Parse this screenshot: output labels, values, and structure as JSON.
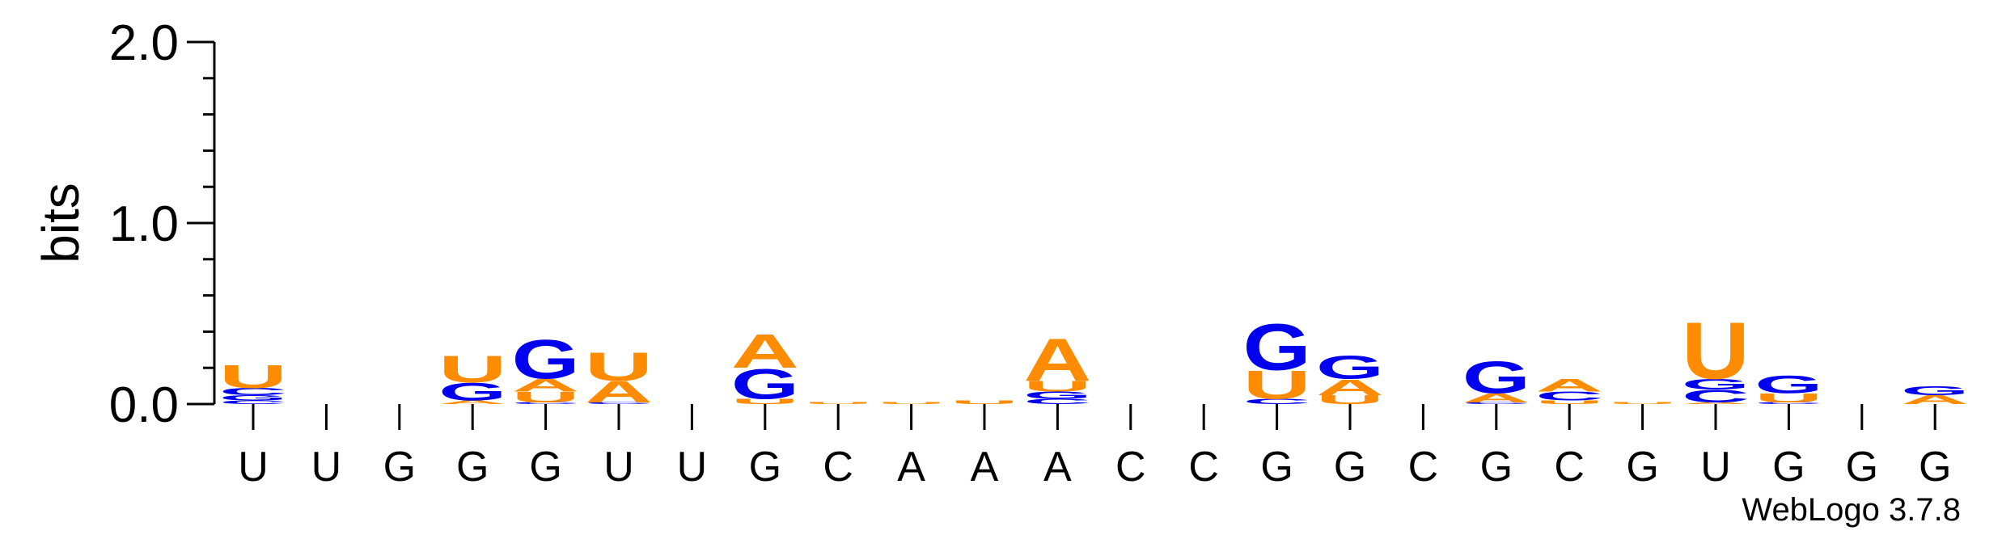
{
  "chart_data": {
    "type": "sequence-logo",
    "ylabel": "bits",
    "ylim": [
      0,
      2
    ],
    "yticks": [
      "0.0",
      "1.0",
      "2.0"
    ],
    "xticks": [
      "U",
      "U",
      "G",
      "G",
      "G",
      "U",
      "U",
      "G",
      "C",
      "A",
      "A",
      "A",
      "C",
      "C",
      "G",
      "G",
      "C",
      "G",
      "C",
      "G",
      "U",
      "G",
      "G",
      "G"
    ],
    "credit": "WebLogo 3.7.8",
    "colors": {
      "A": "#ff8c00",
      "U": "#ff8c00",
      "G": "#0000ee",
      "C": "#0000ee"
    },
    "positions": [
      [
        [
          "C",
          0.02
        ],
        [
          "G",
          0.03
        ],
        [
          "C",
          0.04
        ],
        [
          "U",
          0.13
        ]
      ],
      [],
      [],
      [
        [
          "A",
          0.02
        ],
        [
          "G",
          0.1
        ],
        [
          "U",
          0.15
        ]
      ],
      [
        [
          "C",
          0.01
        ],
        [
          "U",
          0.06
        ],
        [
          "A",
          0.07
        ],
        [
          "G",
          0.22
        ]
      ],
      [
        [
          "C",
          0.01
        ],
        [
          "A",
          0.12
        ],
        [
          "U",
          0.16
        ]
      ],
      [],
      [
        [
          "U",
          0.03
        ],
        [
          "G",
          0.17
        ],
        [
          "A",
          0.19
        ]
      ],
      [
        [
          "U",
          0.01
        ]
      ],
      [
        [
          "U",
          0.01
        ]
      ],
      [
        [
          "U",
          0.02
        ]
      ],
      [
        [
          "C",
          0.03
        ],
        [
          "G",
          0.04
        ],
        [
          "U",
          0.06
        ],
        [
          "A",
          0.24
        ]
      ],
      [],
      [],
      [
        [
          "C",
          0.03
        ],
        [
          "U",
          0.16
        ],
        [
          "G",
          0.26
        ]
      ],
      [
        [
          "U",
          0.05
        ],
        [
          "A",
          0.09
        ],
        [
          "G",
          0.13
        ]
      ],
      [],
      [
        [
          "C",
          0.01
        ],
        [
          "A",
          0.05
        ],
        [
          "G",
          0.18
        ]
      ],
      [
        [
          "U",
          0.02
        ],
        [
          "C",
          0.05
        ],
        [
          "A",
          0.07
        ]
      ],
      [
        [
          "U",
          0.01
        ]
      ],
      [
        [
          "A",
          0.01
        ],
        [
          "C",
          0.07
        ],
        [
          "G",
          0.06
        ],
        [
          "U",
          0.32
        ]
      ],
      [
        [
          "C",
          0.01
        ],
        [
          "U",
          0.05
        ],
        [
          "G",
          0.1
        ]
      ],
      [],
      [
        [
          "A",
          0.05
        ],
        [
          "G",
          0.05
        ]
      ]
    ]
  }
}
